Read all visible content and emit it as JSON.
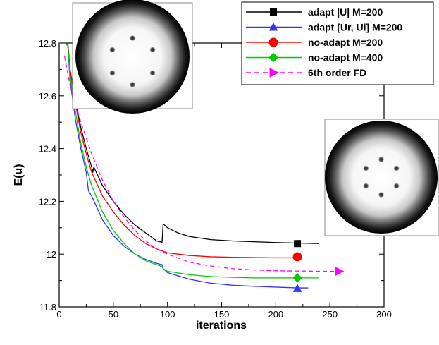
{
  "chart_data": {
    "type": "line",
    "xlabel": "iterations",
    "ylabel": "E(u)",
    "xlim": [
      0,
      300
    ],
    "ylim": [
      11.8,
      12.8
    ],
    "x_ticks": [
      "0",
      "50",
      "100",
      "150",
      "200",
      "250",
      "300"
    ],
    "y_ticks": [
      "11.8",
      "12",
      "12.2",
      "12.4",
      "12.6",
      "12.8"
    ],
    "grid": false,
    "legend_position": "top-right",
    "series": [
      {
        "name": "adapt |U|  M=200",
        "color": "#000000",
        "dash": "solid",
        "marker": "square",
        "marker_at": [
          220,
          12.04
        ],
        "points": [
          [
            0,
            12.8
          ],
          [
            5,
            12.8
          ],
          [
            8,
            12.8
          ],
          [
            10,
            12.7
          ],
          [
            15,
            12.58
          ],
          [
            20,
            12.48
          ],
          [
            25,
            12.4
          ],
          [
            30,
            12.33
          ],
          [
            31,
            12.31
          ],
          [
            32,
            12.33
          ],
          [
            40,
            12.26
          ],
          [
            50,
            12.2
          ],
          [
            60,
            12.15
          ],
          [
            70,
            12.11
          ],
          [
            80,
            12.08
          ],
          [
            90,
            12.05
          ],
          [
            95,
            12.045
          ],
          [
            96,
            12.115
          ],
          [
            100,
            12.1
          ],
          [
            110,
            12.08
          ],
          [
            120,
            12.067
          ],
          [
            140,
            12.055
          ],
          [
            160,
            12.05
          ],
          [
            180,
            12.047
          ],
          [
            200,
            12.044
          ],
          [
            220,
            12.042
          ],
          [
            240,
            12.04
          ]
        ]
      },
      {
        "name": "adapt [Ur, Ui]  M=200",
        "color": "#3333ff",
        "dash": "solid",
        "marker": "triangle",
        "marker_at": [
          220,
          11.87
        ],
        "points": [
          [
            0,
            12.8
          ],
          [
            5,
            12.8
          ],
          [
            8,
            12.79
          ],
          [
            10,
            12.66
          ],
          [
            15,
            12.51
          ],
          [
            20,
            12.4
          ],
          [
            25,
            12.31
          ],
          [
            27,
            12.24
          ],
          [
            30,
            12.22
          ],
          [
            40,
            12.13
          ],
          [
            50,
            12.07
          ],
          [
            60,
            12.03
          ],
          [
            70,
            12.0
          ],
          [
            80,
            11.98
          ],
          [
            90,
            11.965
          ],
          [
            95,
            11.96
          ],
          [
            96,
            11.945
          ],
          [
            100,
            11.93
          ],
          [
            120,
            11.905
          ],
          [
            140,
            11.89
          ],
          [
            160,
            11.882
          ],
          [
            180,
            11.878
          ],
          [
            200,
            11.875
          ],
          [
            220,
            11.872
          ],
          [
            230,
            11.872
          ]
        ]
      },
      {
        "name": "no-adapt  M=200",
        "color": "#ff0000",
        "dash": "solid",
        "marker": "circle",
        "marker_at": [
          220,
          11.99
        ],
        "points": [
          [
            0,
            12.8
          ],
          [
            5,
            12.8
          ],
          [
            8,
            12.79
          ],
          [
            10,
            12.7
          ],
          [
            15,
            12.57
          ],
          [
            20,
            12.46
          ],
          [
            25,
            12.38
          ],
          [
            30,
            12.31
          ],
          [
            40,
            12.22
          ],
          [
            50,
            12.16
          ],
          [
            60,
            12.11
          ],
          [
            70,
            12.07
          ],
          [
            80,
            12.04
          ],
          [
            90,
            12.02
          ],
          [
            100,
            12.005
          ],
          [
            120,
            11.995
          ],
          [
            140,
            11.99
          ],
          [
            160,
            11.988
          ],
          [
            180,
            11.987
          ],
          [
            200,
            11.986
          ],
          [
            220,
            11.986
          ]
        ]
      },
      {
        "name": "no-adapt  M=400",
        "color": "#00cc00",
        "dash": "solid",
        "marker": "diamond",
        "marker_at": [
          220,
          11.91
        ],
        "points": [
          [
            0,
            12.8
          ],
          [
            5,
            12.8
          ],
          [
            8,
            12.79
          ],
          [
            10,
            12.68
          ],
          [
            15,
            12.54
          ],
          [
            20,
            12.42
          ],
          [
            25,
            12.33
          ],
          [
            30,
            12.26
          ],
          [
            40,
            12.16
          ],
          [
            50,
            12.09
          ],
          [
            60,
            12.04
          ],
          [
            70,
            12.0
          ],
          [
            80,
            11.975
          ],
          [
            90,
            11.96
          ],
          [
            95,
            11.952
          ],
          [
            96,
            11.945
          ],
          [
            100,
            11.935
          ],
          [
            120,
            11.922
          ],
          [
            140,
            11.915
          ],
          [
            160,
            11.912
          ],
          [
            180,
            11.91
          ],
          [
            200,
            11.91
          ],
          [
            220,
            11.91
          ],
          [
            240,
            11.91
          ]
        ]
      },
      {
        "name": "6th order FD",
        "color": "#ff00ff",
        "dash": "dashed",
        "marker": "triangle-right",
        "marker_at": [
          258,
          11.935
        ],
        "points": [
          [
            5,
            12.75
          ],
          [
            10,
            12.64
          ],
          [
            20,
            12.5
          ],
          [
            30,
            12.38
          ],
          [
            40,
            12.28
          ],
          [
            50,
            12.2
          ],
          [
            60,
            12.14
          ],
          [
            70,
            12.09
          ],
          [
            80,
            12.05
          ],
          [
            90,
            12.02
          ],
          [
            100,
            12.0
          ],
          [
            120,
            11.97
          ],
          [
            140,
            11.955
          ],
          [
            160,
            11.945
          ],
          [
            180,
            11.94
          ],
          [
            200,
            11.937
          ],
          [
            220,
            11.936
          ],
          [
            240,
            11.935
          ],
          [
            258,
            11.935
          ]
        ]
      }
    ]
  }
}
